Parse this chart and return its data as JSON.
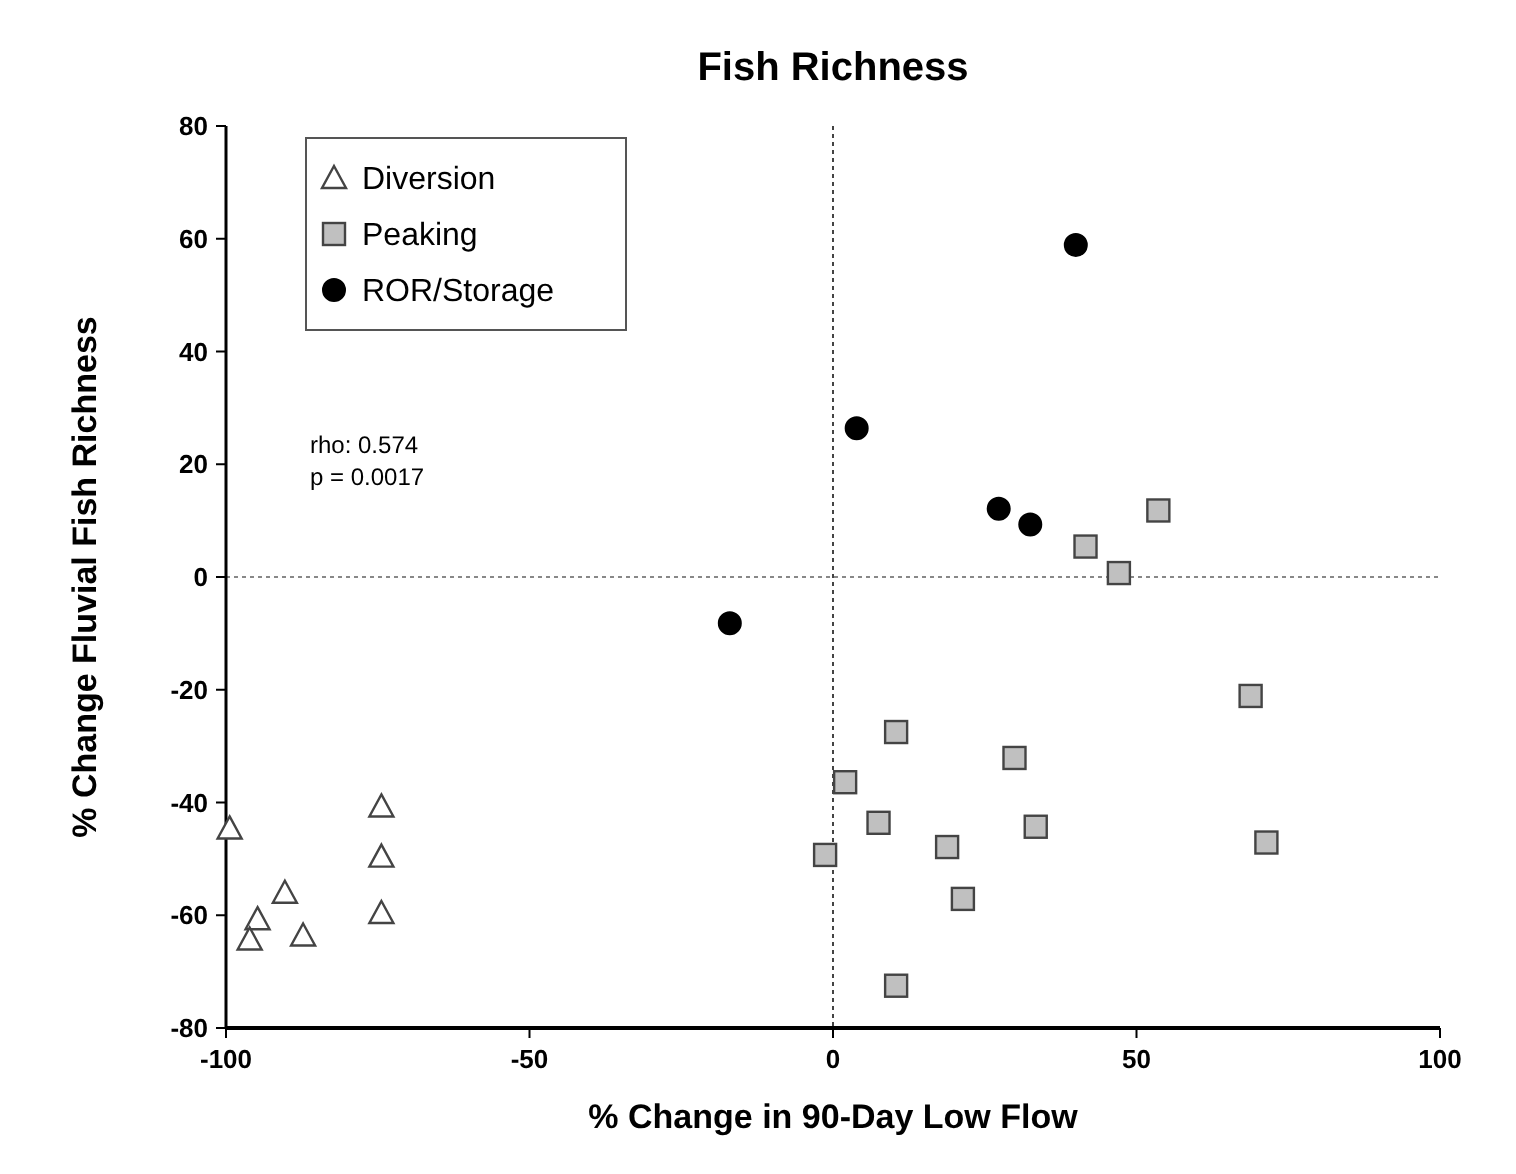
{
  "chart_data": {
    "type": "scatter",
    "title": "Fish Richness",
    "xlabel": "% Change in 90-Day Low Flow",
    "ylabel": "% Change Fluvial Fish Richness",
    "xlim": [
      -100,
      100
    ],
    "xticks": [
      -100,
      -50,
      0,
      50,
      100
    ],
    "ylim": [
      -80,
      80
    ],
    "yticks": [
      -80,
      -60,
      -40,
      -20,
      0,
      20,
      40,
      60,
      80
    ],
    "legend": "top left",
    "grid": false,
    "annotations": [
      "rho: 0.574\np = 0.0017"
    ],
    "ref_lines": [
      {
        "axis": "x",
        "value": 0,
        "line_style": "dotted",
        "color": "#444444"
      },
      {
        "axis": "y",
        "value": 0,
        "line_style": "dotted",
        "color": "#888888"
      }
    ],
    "series": [
      {
        "name": "Diversion",
        "color": "#ffffff",
        "marker": "triangle",
        "x": [
          -74.4,
          -74.4,
          -74.4,
          -99.4,
          -90.3,
          -94.8,
          -96.1,
          -87.3
        ],
        "values": [
          -40.7,
          -49.6,
          -59.6,
          -44.6,
          -56,
          -60.7,
          -64.3,
          -63.6
        ]
      },
      {
        "name": "Peaking",
        "color": "#c0c0c0",
        "marker": "square",
        "x": [
          41.6,
          53.6,
          47.1,
          68.8,
          10.4,
          2,
          29.9,
          7.5,
          33.4,
          -1.3,
          18.8,
          71.4,
          21.4,
          10.4
        ],
        "values": [
          5.4,
          11.8,
          0.7,
          -21.1,
          -27.5,
          -36.4,
          -32.1,
          -43.6,
          -44.3,
          -49.3,
          -47.9,
          -47.1,
          -57.1,
          -72.5
        ]
      },
      {
        "name": "ROR/Storage",
        "color": "#000000",
        "marker": "circle",
        "x": [
          -17,
          3.9,
          40,
          27.3,
          32.5
        ],
        "values": [
          -8.2,
          26.4,
          58.9,
          12.1,
          9.3
        ]
      }
    ]
  }
}
